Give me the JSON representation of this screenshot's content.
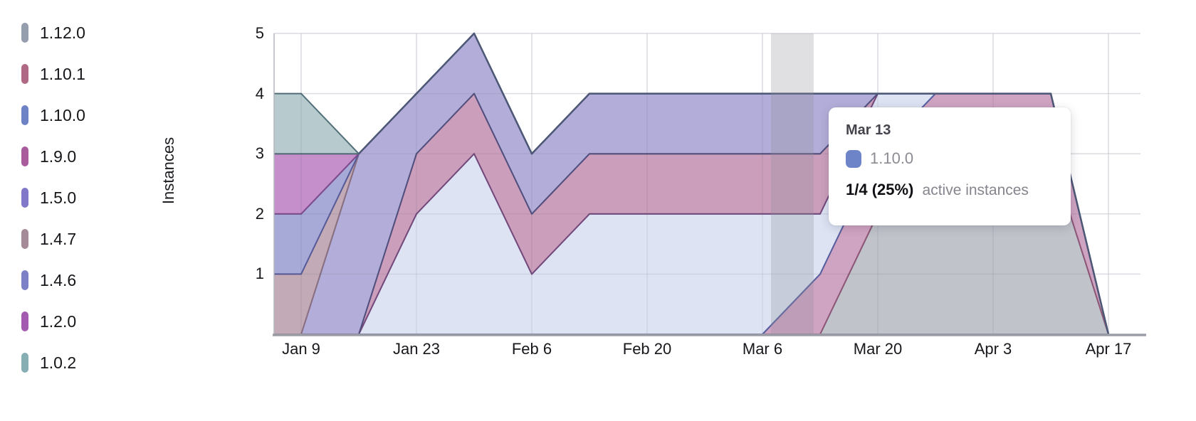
{
  "legend": {
    "items": [
      {
        "label": "1.12.0",
        "color": "#949ead"
      },
      {
        "label": "1.10.1",
        "color": "#b06985"
      },
      {
        "label": "1.10.0",
        "color": "#6d83c5"
      },
      {
        "label": "1.9.0",
        "color": "#a95b9c"
      },
      {
        "label": "1.5.0",
        "color": "#8278ca"
      },
      {
        "label": "1.4.7",
        "color": "#a48b97"
      },
      {
        "label": "1.4.6",
        "color": "#7b80c7"
      },
      {
        "label": "1.2.0",
        "color": "#a55ab2"
      },
      {
        "label": "1.0.2",
        "color": "#86aeb3"
      }
    ]
  },
  "tooltip": {
    "date": "Mar 13",
    "series": "1.10.0",
    "swatch_color": "#6d84c8",
    "value": "1/4 (25%)",
    "suffix": "active instances"
  },
  "chart_data": {
    "type": "area",
    "stacked": true,
    "title": "",
    "xlabel": "",
    "ylabel": "Instances",
    "ylim": [
      0,
      5
    ],
    "yticks": [
      1,
      2,
      3,
      4,
      5
    ],
    "grid": true,
    "legend_position": "left",
    "x_dates": [
      "Jan 2",
      "Jan 9",
      "Jan 16",
      "Jan 23",
      "Jan 30",
      "Feb 6",
      "Feb 13",
      "Feb 20",
      "Feb 27",
      "Mar 6",
      "Mar 13",
      "Mar 20",
      "Mar 27",
      "Apr 3",
      "Apr 10",
      "Apr 17"
    ],
    "x_tick_labels": [
      "Jan 9",
      "Jan 23",
      "Feb 6",
      "Feb 20",
      "Mar 6",
      "Mar 20",
      "Apr 3",
      "Apr 17"
    ],
    "x_tick_indices": [
      1,
      3,
      5,
      7,
      9,
      11,
      13,
      15
    ],
    "stack_order_bottom_to_top": [
      "1.12.0",
      "1.10.1",
      "1.10.0",
      "1.9.0",
      "1.5.0",
      "1.4.7",
      "1.4.6",
      "1.2.0",
      "1.0.2"
    ],
    "series": [
      {
        "name": "1.12.0",
        "values": [
          0,
          0,
          0,
          0,
          0,
          0,
          0,
          0,
          0,
          0,
          0,
          2,
          3,
          3,
          3,
          0
        ],
        "fill": "#c0c3ca",
        "stroke": "#787f8c"
      },
      {
        "name": "1.10.1",
        "values": [
          0,
          0,
          0,
          0,
          0,
          0,
          0,
          0,
          0,
          0,
          1,
          1,
          1,
          1,
          1,
          0
        ],
        "fill": "#cfa3c2",
        "stroke": "#8d5677"
      },
      {
        "name": "1.10.0",
        "values": [
          0,
          0,
          0,
          2,
          3,
          1,
          2,
          2,
          2,
          2,
          1,
          1,
          0,
          0,
          0,
          0
        ],
        "fill": "#dde3f3",
        "stroke": "#5560a0"
      },
      {
        "name": "1.9.0",
        "values": [
          0,
          0,
          0,
          1,
          1,
          1,
          1,
          1,
          1,
          1,
          1,
          0,
          0,
          0,
          0,
          0
        ],
        "fill": "#cb9fbc",
        "stroke": "#75497b"
      },
      {
        "name": "1.5.0",
        "values": [
          0,
          0,
          3,
          1,
          1,
          1,
          1,
          1,
          1,
          1,
          1,
          0,
          0,
          0,
          0,
          0
        ],
        "fill": "#b3aed9",
        "stroke": "#514f7e"
      },
      {
        "name": "1.4.7",
        "values": [
          1,
          1,
          0,
          0,
          0,
          0,
          0,
          0,
          0,
          0,
          0,
          0,
          0,
          0,
          0,
          0
        ],
        "fill": "#c2abb7",
        "stroke": "#8a7080"
      },
      {
        "name": "1.4.6",
        "values": [
          1,
          1,
          0,
          0,
          0,
          0,
          0,
          0,
          0,
          0,
          0,
          0,
          0,
          0,
          0,
          0
        ],
        "fill": "#a7aad7",
        "stroke": "#565b99"
      },
      {
        "name": "1.2.0",
        "values": [
          1,
          1,
          0,
          0,
          0,
          0,
          0,
          0,
          0,
          0,
          0,
          0,
          0,
          0,
          0,
          0
        ],
        "fill": "#c58fcb",
        "stroke": "#7e4a8c"
      },
      {
        "name": "1.0.2",
        "values": [
          1,
          1,
          0,
          0,
          0,
          0,
          0,
          0,
          0,
          0,
          0,
          0,
          0,
          0,
          0,
          0
        ],
        "fill": "#b7cacd",
        "stroke": "#53707a"
      }
    ],
    "hover": {
      "date": "Mar 13",
      "column_color": "rgba(142,145,156,0.28)"
    },
    "colors": {
      "top_line": "#4d5876",
      "grid_under": "#ebebf0",
      "grid_over": "rgba(80,80,100,0.10)",
      "x_axis_line": "#9a9da6",
      "y_axis_line": "#b3b6bd"
    }
  }
}
